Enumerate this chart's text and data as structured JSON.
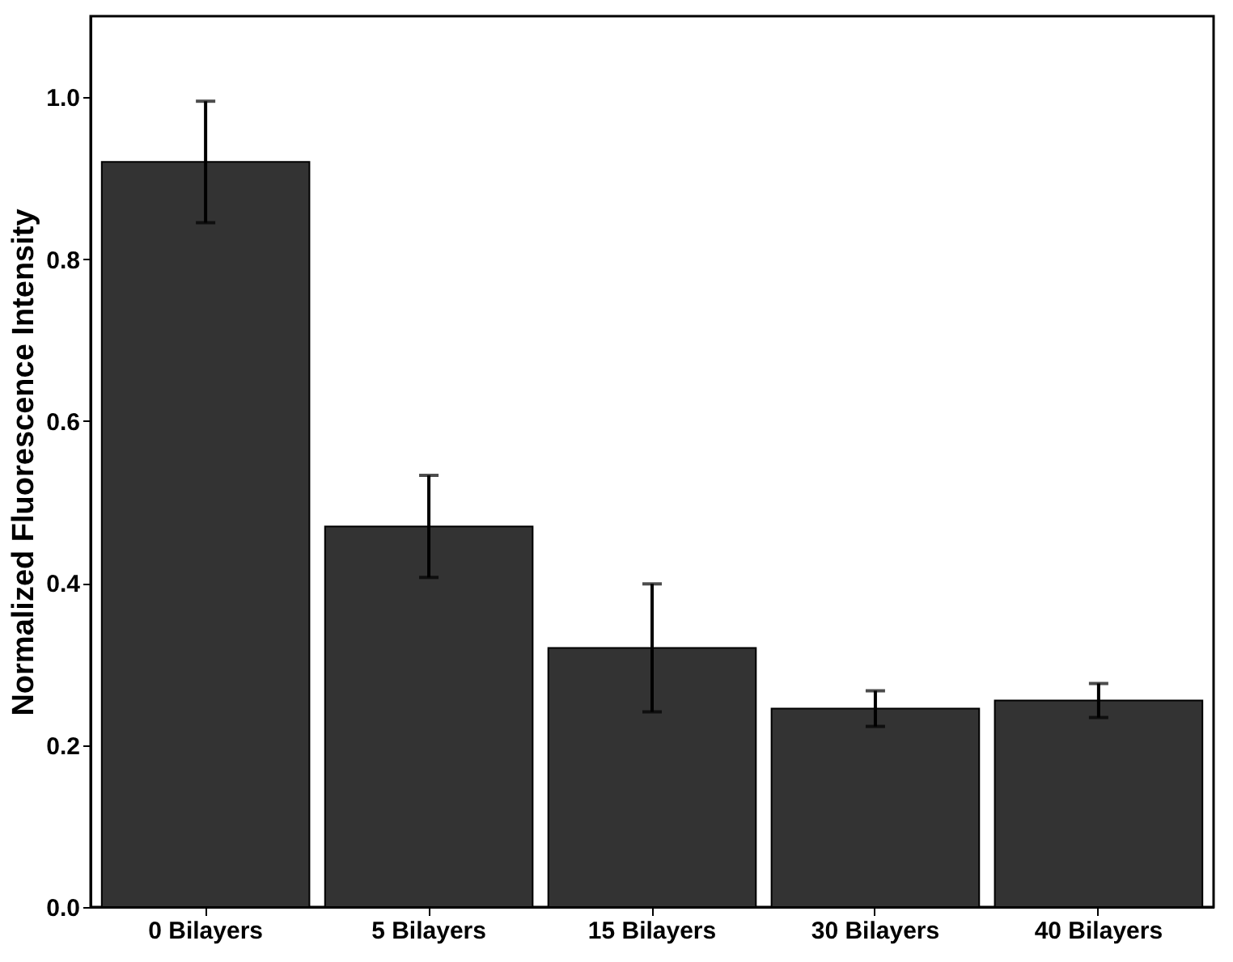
{
  "chart_data": {
    "type": "bar",
    "ylabel": "Normalized Fluorescence Intensity",
    "categories": [
      "0 Bilayers",
      "5 Bilayers",
      "15 Bilayers",
      "30 Bilayers",
      "40 Bilayers"
    ],
    "values": [
      0.92,
      0.47,
      0.32,
      0.245,
      0.255
    ],
    "errors": [
      0.075,
      0.063,
      0.079,
      0.022,
      0.021
    ],
    "color": "#333333",
    "ylim": [
      0,
      1.1
    ],
    "yticks": [
      {
        "value": 0,
        "label": "0.0"
      },
      0.2,
      0.4,
      0.6,
      0.8,
      {
        "value": 1,
        "label": "1.0"
      }
    ],
    "grid": false
  }
}
